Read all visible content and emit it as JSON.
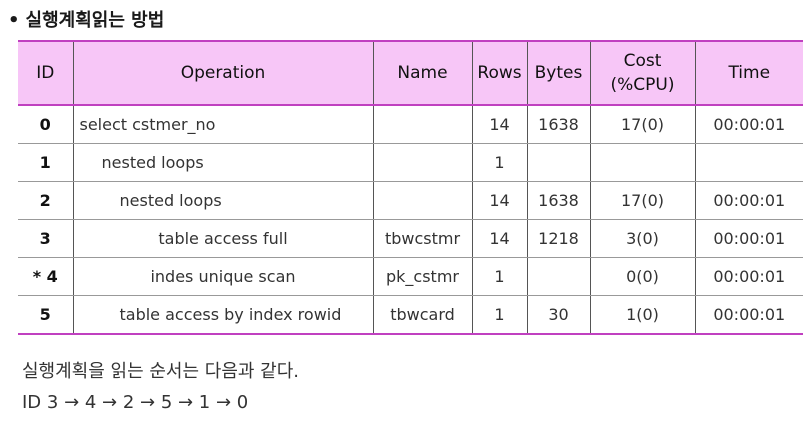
{
  "title": "실행계획읽는 방법",
  "bullet": "•",
  "table": {
    "headers": [
      "ID",
      "Operation",
      "Name",
      "Rows",
      "Bytes",
      "Cost\n(%CPU)",
      "Time"
    ],
    "rows": [
      {
        "id": "0",
        "operation": "select cstmer_no",
        "indent": 0,
        "name": "",
        "rows": "14",
        "bytes": "1638",
        "cost": "17(0)",
        "time": "00:00:01"
      },
      {
        "id": "1",
        "operation": "nested loops",
        "indent": 1,
        "name": "",
        "rows": "1",
        "bytes": "",
        "cost": "",
        "time": ""
      },
      {
        "id": "2",
        "operation": "nested loops",
        "indent": 2,
        "name": "",
        "rows": "14",
        "bytes": "1638",
        "cost": "17(0)",
        "time": "00:00:01"
      },
      {
        "id": "3",
        "operation": "table access full",
        "indent": 3,
        "name": "tbwcstmr",
        "rows": "14",
        "bytes": "1218",
        "cost": "3(0)",
        "time": "00:00:01"
      },
      {
        "id": "* 4",
        "operation": "indes unique scan",
        "indent": 3,
        "name": "pk_cstmr",
        "rows": "1",
        "bytes": "",
        "cost": "0(0)",
        "time": "00:00:01"
      },
      {
        "id": "5",
        "operation": "table access by index rowid",
        "indent": 2,
        "name": "tbwcard",
        "rows": "1",
        "bytes": "30",
        "cost": "1(0)",
        "time": "00:00:01"
      }
    ]
  },
  "notes": {
    "line1": "실행계획을 읽는 순서는 다음과 같다.",
    "line2": "ID 3 → 4 → 2 → 5 → 1 → 0"
  }
}
